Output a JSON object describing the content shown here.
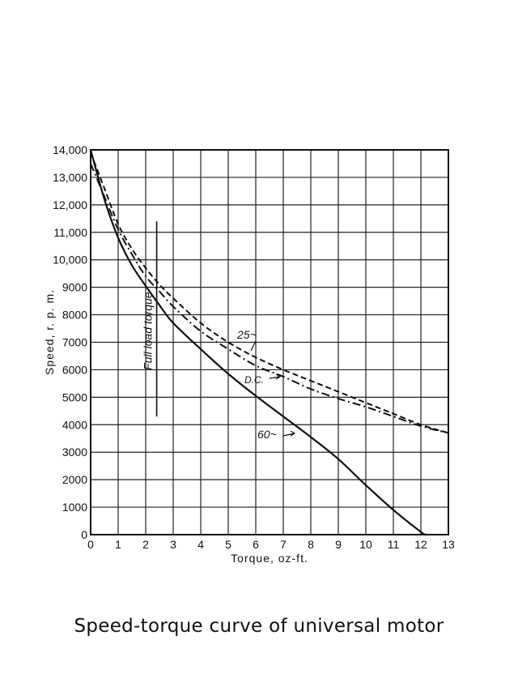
{
  "caption": "Speed-torque curve of universal motor",
  "chart_data": {
    "type": "line",
    "title": "",
    "xlabel": "Torque, oz-ft.",
    "ylabel": "Speed, r. p. m.",
    "xlim": [
      0,
      13
    ],
    "ylim": [
      0,
      14000
    ],
    "grid": true,
    "x_tick_labels": [
      "0",
      "1",
      "2",
      "3",
      "4",
      "5",
      "6",
      "7",
      "8",
      "9",
      "10",
      "11",
      "12",
      "13"
    ],
    "y_tick_labels": [
      "0",
      "1000",
      "2000",
      "3000",
      "4000",
      "5000",
      "6000",
      "7000",
      "8000",
      "9000",
      "10,000",
      "11,000",
      "12,000",
      "13,000",
      "14,000"
    ],
    "series": [
      {
        "name": "25~",
        "style": "dashed",
        "x": [
          0,
          0.5,
          1,
          1.5,
          2,
          2.5,
          3,
          4,
          5,
          6,
          7,
          8,
          9,
          10,
          11,
          12,
          13
        ],
        "y": [
          13900,
          12600,
          11300,
          10400,
          9700,
          9100,
          8600,
          7700,
          7000,
          6450,
          6000,
          5600,
          5200,
          4800,
          4400,
          4000,
          3700
        ]
      },
      {
        "name": "D.C.",
        "style": "dash-dot",
        "x": [
          0,
          0.5,
          1,
          1.5,
          2,
          2.5,
          3,
          4,
          5,
          6,
          7,
          8,
          9,
          10,
          11,
          12,
          13
        ],
        "y": [
          13500,
          12300,
          11100,
          10200,
          9400,
          8850,
          8300,
          7400,
          6750,
          6150,
          5750,
          5300,
          4950,
          4650,
          4300,
          3950,
          3700
        ]
      },
      {
        "name": "60~",
        "style": "solid",
        "x": [
          0,
          0.5,
          1,
          1.5,
          2,
          2.5,
          3,
          4,
          5,
          6,
          7,
          8,
          9,
          10,
          11,
          12,
          12.2
        ],
        "y": [
          14000,
          12200,
          10800,
          9800,
          9050,
          8350,
          7700,
          6750,
          5850,
          5050,
          4300,
          3550,
          2750,
          1800,
          900,
          100,
          0
        ]
      }
    ],
    "annotations": [
      {
        "text": "Full load torque",
        "type": "vertical-marker",
        "x": 2.4,
        "y_range": [
          4300,
          11400
        ]
      },
      {
        "text": "25~",
        "series": "25~"
      },
      {
        "text": "D.C.",
        "series": "D.C."
      },
      {
        "text": "60~",
        "series": "60~"
      }
    ]
  }
}
